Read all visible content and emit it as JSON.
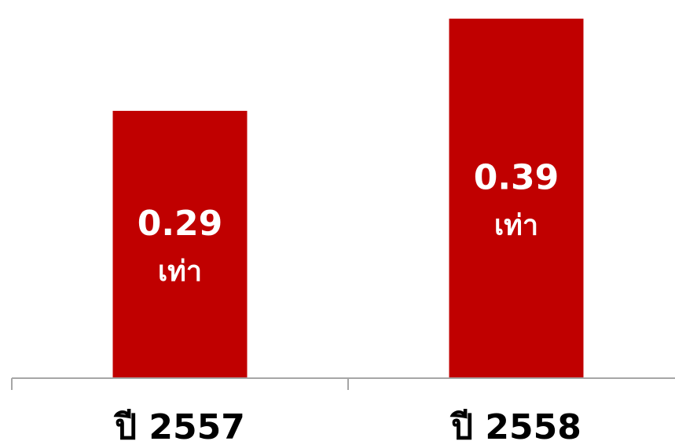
{
  "chart_data": {
    "type": "bar",
    "categories": [
      "ปี 2557",
      "ปี 2558"
    ],
    "values": [
      0.29,
      0.39
    ],
    "data_labels": [
      {
        "value": "0.29",
        "unit": "เท่า"
      },
      {
        "value": "0.39",
        "unit": "เท่า"
      }
    ],
    "title": "",
    "xlabel": "",
    "ylabel": "",
    "ylim": [
      0,
      0.4
    ],
    "grid": false,
    "legend": "none",
    "colors": {
      "bar": "#C00000",
      "axis": "#A6A6A6",
      "label_on_bar": "#FFFFFF",
      "tick_label": "#000000"
    }
  }
}
